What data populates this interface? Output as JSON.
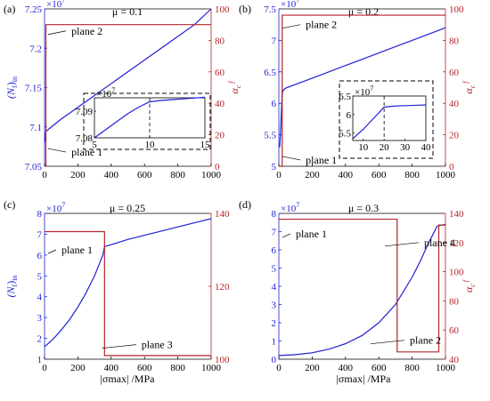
{
  "colors": {
    "left": "#1f1fd6",
    "right": "#b2262b",
    "dash": "#000000",
    "axis": "#000000"
  },
  "shared_xlabel": "|σmax| /MPa",
  "chart_data": [
    {
      "type": "line",
      "panel_label": "(a)",
      "title": "μ = 0.1",
      "xlim": [
        0,
        1000
      ],
      "xticks": [
        0,
        200,
        400,
        600,
        800,
        1000
      ],
      "xtick_labels": [
        "0",
        "200",
        "400",
        "600",
        "800",
        "1000"
      ],
      "left_axis": {
        "label": "(Nf)min",
        "exponent": "×10^7",
        "ylim": [
          7.05,
          7.25
        ],
        "ticks": [
          7.05,
          7.1,
          7.15,
          7.2,
          7.25
        ],
        "tick_labels": [
          "7.05",
          "7.1",
          "7.15",
          "7.2",
          "7.25"
        ]
      },
      "right_axis": {
        "label": "αc f",
        "ylim": [
          0,
          100
        ],
        "ticks": [
          0,
          20,
          40,
          60,
          80,
          100
        ],
        "tick_labels": [
          "0",
          "20",
          "40",
          "60",
          "80",
          "100"
        ]
      },
      "series": [
        {
          "axis": "left",
          "x": [
            0,
            1,
            2,
            3,
            4,
            5,
            6,
            7,
            8,
            9,
            10,
            15,
            100,
            200,
            300,
            400,
            500,
            600,
            700,
            800,
            900,
            1000
          ],
          "y": [
            7.08,
            7.082,
            7.084,
            7.086,
            7.088,
            7.09,
            7.0915,
            7.093,
            7.0935,
            7.094,
            7.0945,
            7.0955,
            7.11,
            7.125,
            7.14,
            7.155,
            7.17,
            7.185,
            7.2,
            7.215,
            7.23,
            7.25
          ]
        },
        {
          "axis": "right",
          "x": [
            0,
            8,
            8,
            1000
          ],
          "y": [
            0,
            0,
            90,
            90
          ]
        }
      ],
      "annotations": [
        {
          "text": "plane 2",
          "x": 140,
          "y_right": 86
        },
        {
          "text": "plane 1",
          "x": 140,
          "y_right": 9
        }
      ],
      "inset": {
        "xlim": [
          5,
          15
        ],
        "ylim": [
          7.08,
          7.095
        ],
        "xticks": [
          5,
          10,
          15
        ],
        "xtick_labels": [
          "5",
          "10",
          "15"
        ],
        "yticks": [
          7.08,
          7.09
        ],
        "ytick_labels": [
          "7.08",
          "7.09"
        ],
        "exponent": "×10^7",
        "x": [
          5,
          6,
          7,
          8,
          9,
          10,
          11,
          12,
          13,
          14,
          15
        ],
        "y": [
          7.08,
          7.083,
          7.086,
          7.089,
          7.0915,
          7.0935,
          7.094,
          7.0943,
          7.0946,
          7.0949,
          7.0952
        ],
        "dash_x": 10
      }
    },
    {
      "type": "line",
      "panel_label": "(b)",
      "title": "μ = 0.2",
      "xlim": [
        0,
        1000
      ],
      "xticks": [
        0,
        200,
        400,
        600,
        800,
        1000
      ],
      "xtick_labels": [
        "0",
        "200",
        "400",
        "600",
        "800",
        "1000"
      ],
      "left_axis": {
        "label": "",
        "exponent": "×10^7",
        "ylim": [
          5,
          7.5
        ],
        "ticks": [
          5,
          5.5,
          6,
          6.5,
          7,
          7.5
        ],
        "tick_labels": [
          "5",
          "5.5",
          "6",
          "6.5",
          "7",
          "7.5"
        ]
      },
      "right_axis": {
        "label": "αc f",
        "ylim": [
          0,
          100
        ],
        "ticks": [
          0,
          20,
          40,
          60,
          80,
          100
        ],
        "tick_labels": [
          "0",
          "20",
          "40",
          "60",
          "80",
          "100"
        ]
      },
      "series": [
        {
          "axis": "left",
          "x": [
            5,
            10,
            15,
            20,
            25,
            30,
            40,
            100,
            200,
            300,
            400,
            500,
            600,
            700,
            800,
            900,
            1000
          ],
          "y": [
            5.3,
            5.55,
            5.85,
            6.15,
            6.2,
            6.22,
            6.24,
            6.3,
            6.4,
            6.5,
            6.6,
            6.7,
            6.8,
            6.9,
            7.0,
            7.1,
            7.2
          ]
        },
        {
          "axis": "right",
          "x": [
            0,
            20,
            20,
            1000
          ],
          "y": [
            0,
            0,
            96,
            96
          ]
        }
      ],
      "annotations": [
        {
          "text": "plane 2",
          "x": 140,
          "y_right": 90
        },
        {
          "text": "plane 1",
          "x": 140,
          "y_right": 4
        }
      ],
      "inset": {
        "xlim": [
          5,
          40
        ],
        "ylim": [
          5.3,
          6.5
        ],
        "xticks": [
          10,
          20,
          30,
          40
        ],
        "xtick_labels": [
          "10",
          "20",
          "30",
          "40"
        ],
        "yticks": [
          5.5,
          6,
          6.5
        ],
        "ytick_labels": [
          "5.5",
          "6",
          "6.5"
        ],
        "exponent": "×10^7",
        "x": [
          5,
          10,
          15,
          20,
          25,
          30,
          35,
          40
        ],
        "y": [
          5.35,
          5.6,
          5.9,
          6.2,
          6.23,
          6.24,
          6.25,
          6.26
        ],
        "dash_x": 20
      }
    },
    {
      "type": "line",
      "panel_label": "(c)",
      "title": "μ = 0.25",
      "xlim": [
        0,
        1000
      ],
      "xticks": [
        0,
        200,
        400,
        600,
        800,
        1000
      ],
      "xtick_labels": [
        "0",
        "200",
        "400",
        "600",
        "800",
        "1000"
      ],
      "left_axis": {
        "label": "(Nf)min",
        "exponent": "×10^7",
        "ylim": [
          1,
          8
        ],
        "ticks": [
          1,
          2,
          3,
          4,
          5,
          6,
          7,
          8
        ],
        "tick_labels": [
          "1",
          "2",
          "3",
          "4",
          "5",
          "6",
          "7",
          "8"
        ]
      },
      "right_axis": {
        "label": "",
        "ylim": [
          100,
          140
        ],
        "ticks": [
          100,
          120,
          140
        ],
        "tick_labels": [
          "100",
          "120",
          "140"
        ]
      },
      "series": [
        {
          "axis": "left",
          "x": [
            0,
            50,
            100,
            150,
            200,
            250,
            300,
            350,
            360,
            400,
            500,
            600,
            700,
            800,
            900,
            1000
          ],
          "y": [
            1.6,
            1.95,
            2.4,
            2.9,
            3.5,
            4.2,
            5.0,
            6.0,
            6.4,
            6.5,
            6.75,
            6.95,
            7.15,
            7.35,
            7.55,
            7.75
          ]
        },
        {
          "axis": "right",
          "x": [
            0,
            360,
            360,
            1000
          ],
          "y": [
            135,
            135,
            101,
            101
          ]
        }
      ],
      "annotations": [
        {
          "text": "plane 1",
          "x": 80,
          "y_right": 130
        },
        {
          "text": "plane 3",
          "x": 560,
          "y_right": 104
        }
      ]
    },
    {
      "type": "line",
      "panel_label": "(d)",
      "title": "μ = 0.3",
      "xlim": [
        0,
        1000
      ],
      "xticks": [
        0,
        200,
        400,
        600,
        800,
        1000
      ],
      "xtick_labels": [
        "0",
        "200",
        "400",
        "600",
        "800",
        "1000"
      ],
      "left_axis": {
        "label": "",
        "exponent": "×10^7",
        "ylim": [
          0,
          8
        ],
        "ticks": [
          0,
          1,
          2,
          3,
          4,
          5,
          6,
          7,
          8
        ],
        "tick_labels": [
          "0",
          "1",
          "2",
          "3",
          "4",
          "5",
          "6",
          "7",
          "8"
        ]
      },
      "right_axis": {
        "label": "αc f",
        "ylim": [
          40,
          140
        ],
        "ticks": [
          40,
          60,
          80,
          100,
          120,
          140
        ],
        "tick_labels": [
          "40",
          "60",
          "80",
          "100",
          "120",
          "140"
        ]
      },
      "series": [
        {
          "axis": "left",
          "x": [
            0,
            100,
            200,
            300,
            400,
            500,
            600,
            700,
            800,
            850,
            900,
            950,
            1000
          ],
          "y": [
            0.2,
            0.25,
            0.35,
            0.55,
            0.85,
            1.3,
            2.0,
            3.0,
            4.5,
            5.4,
            6.4,
            7.3,
            7.4
          ]
        },
        {
          "axis": "right",
          "x": [
            0,
            710,
            710,
            960,
            960,
            1000
          ],
          "y": [
            136,
            136,
            45,
            45,
            132,
            132
          ]
        }
      ],
      "annotations": [
        {
          "text": "plane 1",
          "x": 80,
          "y_right": 126
        },
        {
          "text": "plane 4",
          "x": 850,
          "y_right": 120
        },
        {
          "text": "plane 2",
          "x": 765,
          "y_right": 53
        }
      ]
    }
  ]
}
